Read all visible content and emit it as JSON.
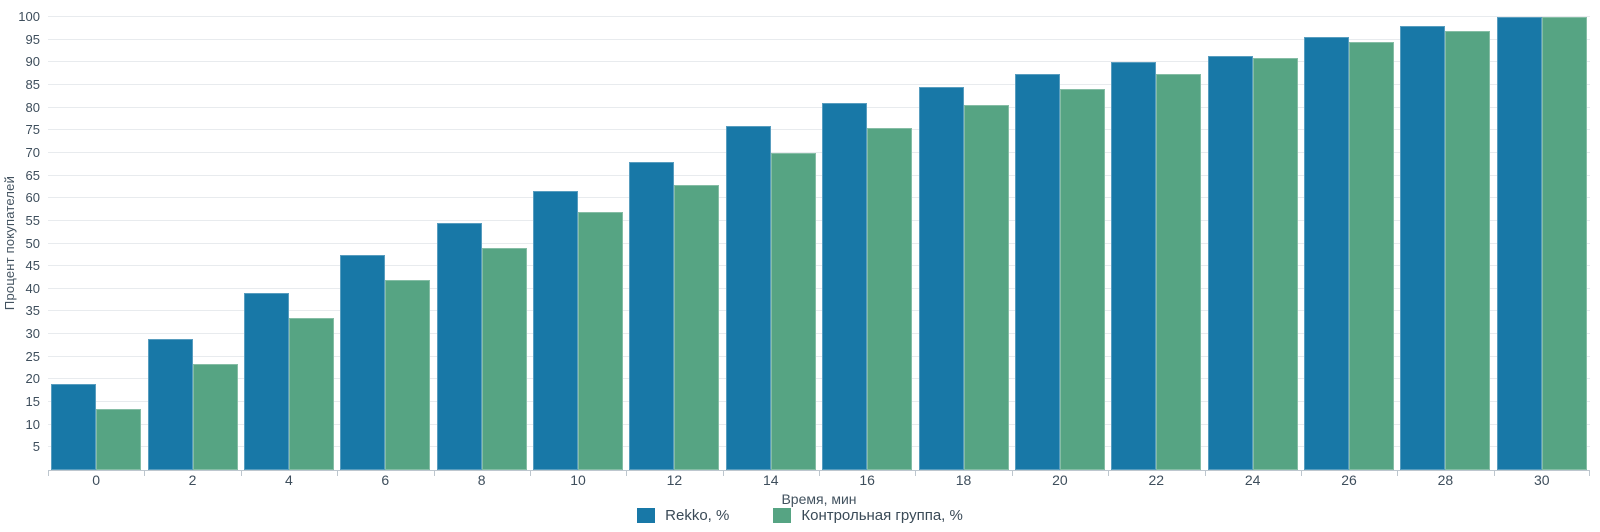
{
  "chart_data": {
    "type": "bar",
    "title": "",
    "xlabel": "Время, мин",
    "ylabel": "Процент покупателей",
    "categories": [
      "0",
      "2",
      "4",
      "6",
      "8",
      "10",
      "12",
      "14",
      "16",
      "18",
      "20",
      "22",
      "24",
      "26",
      "28",
      "30"
    ],
    "series": [
      {
        "name": "Rekko, %",
        "color": "#1878a7",
        "values": [
          19,
          29,
          39,
          47.5,
          54.5,
          61.5,
          68,
          76,
          81,
          84.5,
          87.5,
          90,
          91.5,
          95.5,
          98,
          100
        ]
      },
      {
        "name": "Контрольная группа, %",
        "color": "#56a483",
        "values": [
          13.5,
          23.5,
          33.5,
          42,
          49,
          57,
          63,
          70,
          75.5,
          80.5,
          84,
          87.5,
          91,
          94.5,
          97,
          100
        ]
      }
    ],
    "ylim": [
      0,
      100
    ],
    "yticks": [
      5,
      10,
      15,
      20,
      25,
      30,
      35,
      40,
      45,
      50,
      55,
      60,
      65,
      70,
      75,
      80,
      85,
      90,
      95,
      100
    ],
    "grid": true,
    "legend_position": "bottom"
  },
  "colors": {
    "grid": "#e8ebee",
    "axis": "#bdc6ce",
    "tick_text": "#3e4e5c",
    "background": "#ffffff"
  },
  "legend": {
    "items": [
      {
        "label": "Rekko, %",
        "color": "#1878a7"
      },
      {
        "label": "Контрольная группа, %",
        "color": "#56a483"
      }
    ]
  }
}
